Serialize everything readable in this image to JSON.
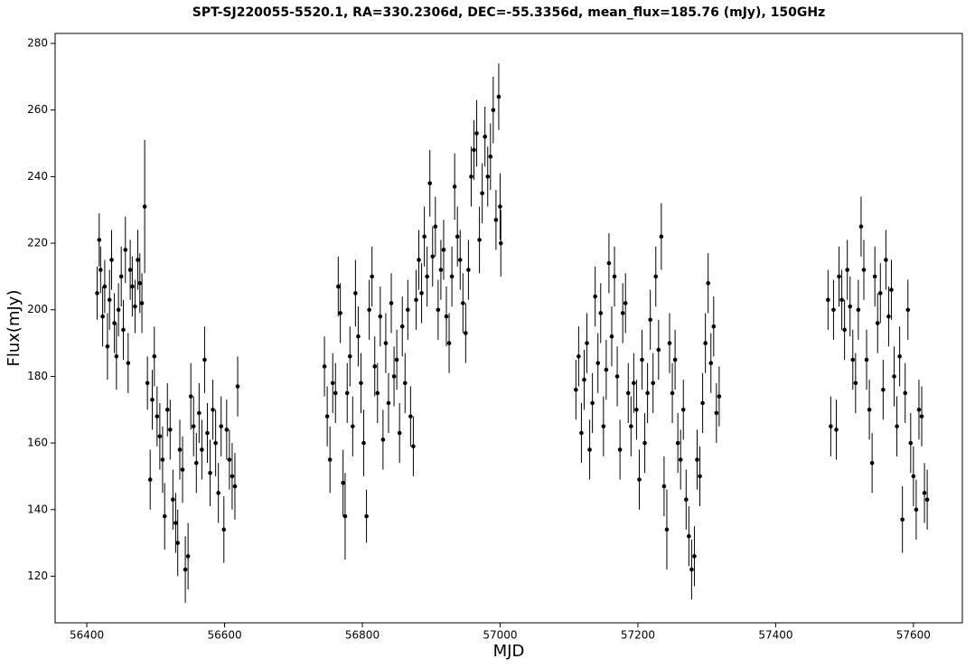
{
  "chart_data": {
    "type": "errorbar",
    "title": "SPT-SJ220055-5520.1, RA=330.2306d, DEC=-55.3356d, mean_flux=185.76 (mJy), 150GHz",
    "x_label": "MJD",
    "y_label": "Flux(mJy)",
    "color": "#000000",
    "xlim": [
      56354,
      57671
    ],
    "ylim": [
      106,
      283
    ],
    "xticks": [
      56400,
      56600,
      56800,
      57000,
      57200,
      57400,
      57600
    ],
    "yticks": [
      120,
      140,
      160,
      180,
      200,
      220,
      240,
      260,
      280
    ],
    "x": [
      56415,
      56418,
      56420,
      56423,
      56426,
      56430,
      56433,
      56436,
      56440,
      56443,
      56446,
      56450,
      56453,
      56456,
      56460,
      56463,
      56466,
      56470,
      56474,
      56477,
      56480,
      56484,
      56488,
      56492,
      56495,
      56498,
      56502,
      56506,
      56510,
      56513,
      56517,
      56521,
      56525,
      56529,
      56532,
      56535,
      56539,
      56543,
      56547,
      56551,
      56555,
      56559,
      56563,
      56567,
      56571,
      56575,
      56579,
      56583,
      56587,
      56591,
      56595,
      56599,
      56603,
      56607,
      56611,
      56615,
      56619,
      56745,
      56749,
      56753,
      56757,
      56761,
      56765,
      56768,
      56772,
      56775,
      56778,
      56782,
      56786,
      56790,
      56794,
      56798,
      56802,
      56806,
      56810,
      56814,
      56818,
      56822,
      56826,
      56830,
      56834,
      56838,
      56842,
      56846,
      56850,
      56854,
      56858,
      56862,
      56866,
      56870,
      56874,
      56878,
      56882,
      56886,
      56890,
      56894,
      56898,
      56902,
      56906,
      56910,
      56914,
      56918,
      56922,
      56926,
      56930,
      56934,
      56938,
      56942,
      56946,
      56950,
      56954,
      56958,
      56962,
      56966,
      56970,
      56974,
      56978,
      56982,
      56986,
      56990,
      56994,
      56998,
      57000,
      57001,
      57110,
      57114,
      57118,
      57122,
      57126,
      57130,
      57134,
      57138,
      57142,
      57146,
      57150,
      57154,
      57158,
      57162,
      57166,
      57170,
      57174,
      57178,
      57182,
      57186,
      57190,
      57194,
      57198,
      57202,
      57206,
      57210,
      57214,
      57218,
      57222,
      57226,
      57230,
      57234,
      57238,
      57242,
      57246,
      57250,
      57254,
      57258,
      57262,
      57266,
      57270,
      57274,
      57278,
      57282,
      57286,
      57290,
      57294,
      57298,
      57302,
      57306,
      57310,
      57314,
      57318,
      57476,
      57480,
      57484,
      57488,
      57492,
      57496,
      57500,
      57504,
      57508,
      57512,
      57516,
      57520,
      57524,
      57528,
      57532,
      57536,
      57540,
      57544,
      57548,
      57552,
      57556,
      57560,
      57564,
      57568,
      57572,
      57576,
      57580,
      57584,
      57588,
      57592,
      57596,
      57600,
      57604,
      57608,
      57612,
      57616,
      57620
    ],
    "values": [
      205,
      221,
      212,
      198,
      207,
      189,
      203,
      215,
      196,
      186,
      200,
      210,
      194,
      218,
      184,
      212,
      207,
      201,
      215,
      208,
      202,
      231,
      178,
      149,
      173,
      186,
      168,
      162,
      155,
      138,
      170,
      164,
      143,
      136,
      130,
      158,
      152,
      122,
      126,
      174,
      165,
      154,
      169,
      158,
      185,
      163,
      151,
      170,
      160,
      145,
      165,
      134,
      164,
      155,
      150,
      147,
      177,
      183,
      168,
      155,
      178,
      175,
      207,
      199,
      148,
      138,
      175,
      186,
      165,
      205,
      192,
      178,
      160,
      138,
      200,
      210,
      183,
      175,
      198,
      161,
      190,
      172,
      202,
      180,
      185,
      163,
      195,
      178,
      200,
      168,
      159,
      203,
      215,
      205,
      222,
      210,
      238,
      216,
      225,
      200,
      212,
      218,
      198,
      190,
      210,
      237,
      222,
      215,
      202,
      193,
      212,
      240,
      248,
      253,
      221,
      235,
      252,
      240,
      246,
      260,
      227,
      264,
      231,
      220,
      176,
      186,
      163,
      179,
      190,
      158,
      172,
      204,
      184,
      199,
      165,
      182,
      214,
      192,
      210,
      180,
      158,
      199,
      202,
      175,
      165,
      178,
      170,
      149,
      185,
      160,
      175,
      197,
      178,
      210,
      188,
      222,
      147,
      134,
      190,
      175,
      185,
      160,
      155,
      170,
      143,
      132,
      122,
      126,
      155,
      150,
      172,
      190,
      208,
      184,
      195,
      169,
      174,
      203,
      165,
      200,
      164,
      210,
      203,
      194,
      212,
      201,
      185,
      178,
      200,
      225,
      212,
      185,
      170,
      154,
      210,
      196,
      205,
      176,
      215,
      198,
      206,
      180,
      165,
      186,
      137,
      175,
      200,
      160,
      150,
      140,
      170,
      168,
      145,
      143
    ],
    "errors": [
      8,
      8,
      7,
      9,
      8,
      10,
      9,
      9,
      9,
      10,
      8,
      9,
      9,
      10,
      9,
      9,
      9,
      8,
      9,
      9,
      9,
      20,
      8,
      9,
      9,
      9,
      9,
      10,
      10,
      10,
      8,
      9,
      9,
      9,
      10,
      9,
      10,
      10,
      10,
      10,
      9,
      9,
      9,
      9,
      10,
      9,
      10,
      9,
      10,
      9,
      9,
      10,
      9,
      9,
      10,
      10,
      9,
      9,
      9,
      10,
      9,
      9,
      9,
      9,
      10,
      13,
      9,
      9,
      9,
      10,
      9,
      9,
      10,
      8,
      9,
      9,
      9,
      9,
      9,
      9,
      9,
      9,
      9,
      9,
      9,
      9,
      9,
      9,
      9,
      9,
      9,
      9,
      9,
      9,
      9,
      9,
      10,
      9,
      9,
      9,
      9,
      9,
      9,
      9,
      9,
      10,
      9,
      9,
      9,
      9,
      9,
      9,
      9,
      10,
      10,
      9,
      9,
      9,
      10,
      10,
      9,
      10,
      10,
      10,
      9,
      9,
      9,
      9,
      9,
      9,
      9,
      9,
      9,
      9,
      9,
      9,
      9,
      9,
      9,
      9,
      9,
      9,
      9,
      9,
      9,
      9,
      9,
      9,
      9,
      9,
      9,
      9,
      9,
      9,
      9,
      10,
      9,
      12,
      9,
      9,
      9,
      9,
      9,
      9,
      9,
      9,
      9,
      9,
      9,
      9,
      9,
      9,
      9,
      9,
      9,
      9,
      9,
      9,
      9,
      9,
      9,
      9,
      9,
      9,
      9,
      9,
      9,
      9,
      9,
      9,
      9,
      9,
      9,
      9,
      9,
      9,
      9,
      9,
      9,
      9,
      9,
      9,
      9,
      9,
      10,
      9,
      9,
      9,
      9,
      9,
      9,
      9,
      9,
      9
    ]
  }
}
